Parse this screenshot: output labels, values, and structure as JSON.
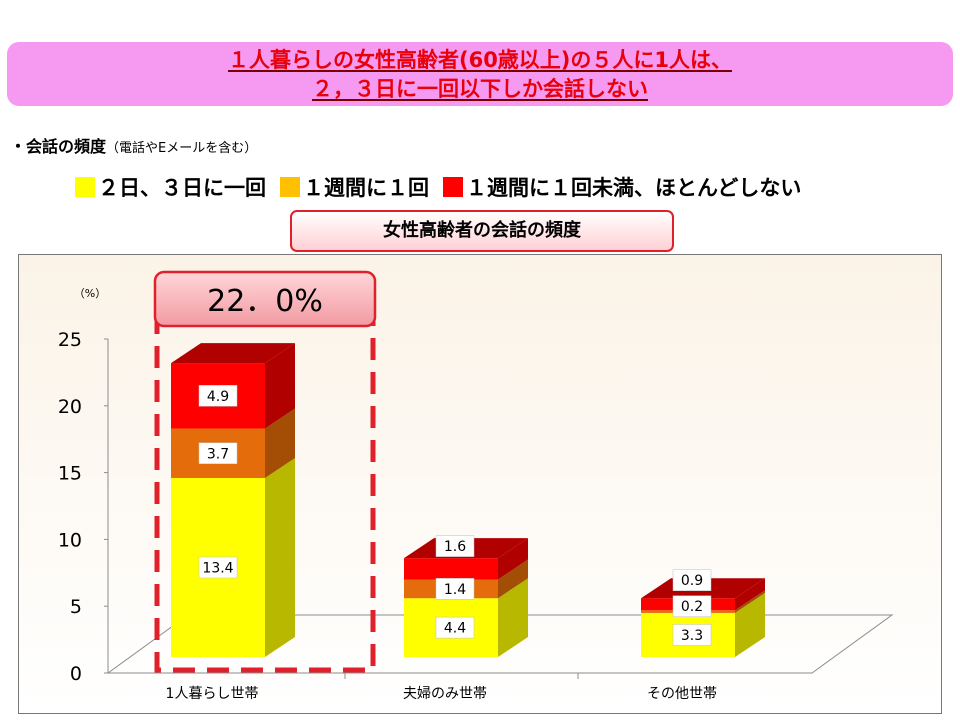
{
  "header": {
    "line1": "１人暮らしの女性高齢者(60歳以上)の５人に1人は、",
    "line2": "２，３日に一回以下しか会話しない"
  },
  "freq": {
    "label": "・会話の頻度",
    "note": "（電話やEメールを含む）"
  },
  "chart_data": {
    "type": "bar",
    "stacked": true,
    "title": "女性高齢者の会話の頻度",
    "ylabel": "（%）",
    "ylim": [
      0,
      25
    ],
    "yticks": [
      "0",
      "5",
      "10",
      "15",
      "20",
      "25"
    ],
    "categories": [
      "1人暮らし世帯",
      "夫婦のみ世帯",
      "その他世帯"
    ],
    "series": [
      {
        "name": "２日、３日に一回",
        "values": [
          13.4,
          4.4,
          3.3
        ],
        "labels": [
          "13.4",
          "4.4",
          "3.3"
        ],
        "color": "#ffff00",
        "side": "#b8b800"
      },
      {
        "name": "１週間に１回",
        "values": [
          3.7,
          1.4,
          0.2
        ],
        "labels": [
          "3.7",
          "1.4",
          "0.2"
        ],
        "color": "#e46c0a",
        "side": "#a34d05"
      },
      {
        "name": "１週間に１回未満、ほとんどしない",
        "values": [
          4.9,
          1.6,
          0.9
        ],
        "labels": [
          "4.9",
          "1.6",
          "0.9"
        ],
        "color": "#ff0000",
        "side": "#b00000"
      }
    ],
    "legend_colors": [
      "#ffff00",
      "#ffc000",
      "#ff0000"
    ],
    "highlight": {
      "category": "1人暮らし世帯",
      "total_label": "22．0%"
    },
    "grid": false,
    "legend_position": "top"
  }
}
